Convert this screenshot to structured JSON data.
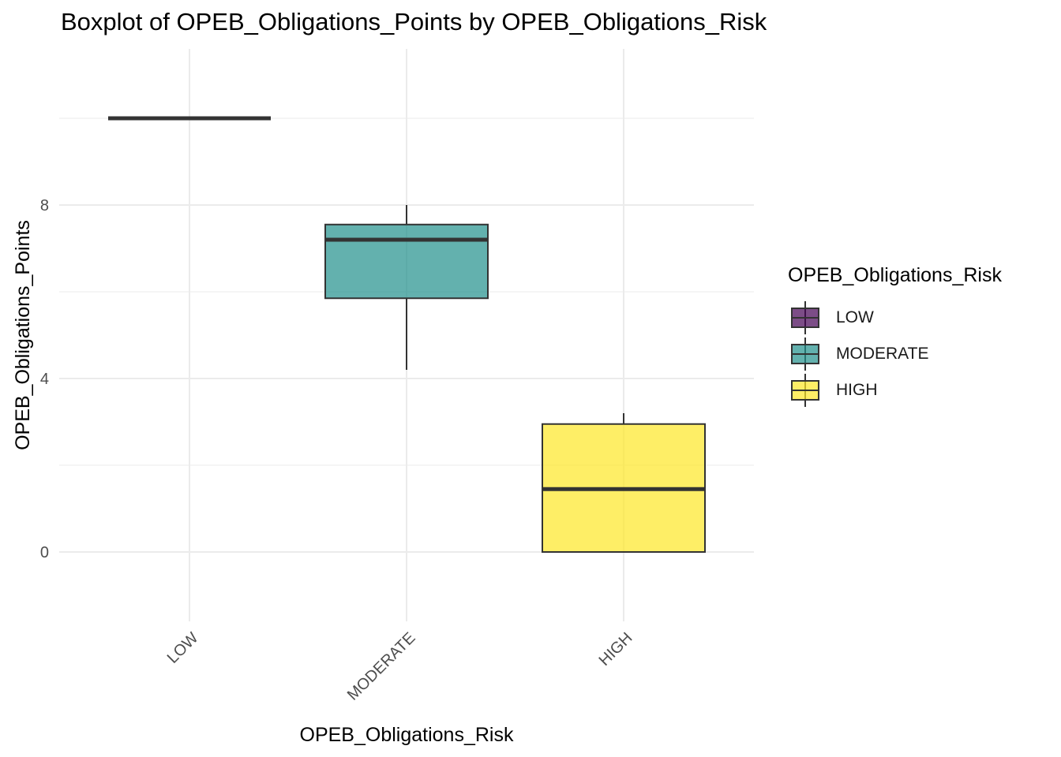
{
  "chart_data": {
    "type": "boxplot",
    "title": "Boxplot of OPEB_Obligations_Points by OPEB_Obligations_Risk",
    "xlabel": "OPEB_Obligations_Risk",
    "ylabel": "OPEB_Obligations_Points",
    "categories": [
      "LOW",
      "MODERATE",
      "HIGH"
    ],
    "y_ticks": [
      0,
      4,
      8
    ],
    "ylim": [
      -1.6,
      11.6
    ],
    "grid": true,
    "legend": {
      "title": "OPEB_Obligations_Risk",
      "position": "right",
      "entries": [
        "LOW",
        "MODERATE",
        "HIGH"
      ]
    },
    "boxes": [
      {
        "category": "LOW",
        "min": 10,
        "q1": 10,
        "median": 10,
        "q3": 10,
        "max": 10,
        "color": "#440154"
      },
      {
        "category": "MODERATE",
        "min": 4.2,
        "q1": 5.85,
        "median": 7.2,
        "q3": 7.55,
        "max": 8.0,
        "color": "#21908C"
      },
      {
        "category": "HIGH",
        "min": 0,
        "q1": 0,
        "median": 1.45,
        "q3": 2.95,
        "max": 3.2,
        "color": "#FDE725"
      }
    ]
  }
}
